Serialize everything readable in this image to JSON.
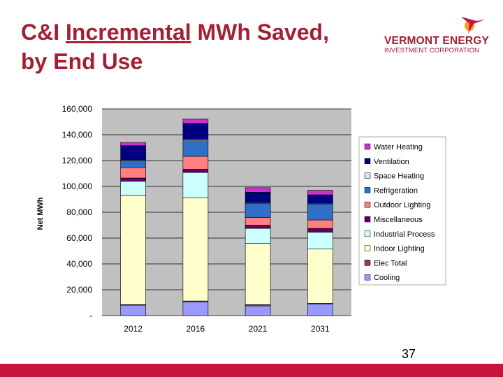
{
  "slide": {
    "title_part1": "C&I ",
    "title_underlined": "Incremental",
    "title_part2": " MWh Saved,",
    "title_line2": "by End Use",
    "page_number": "37",
    "title_color": "#a41f35",
    "footer_color": "#c8143c"
  },
  "logo": {
    "name": "VERMONT ENERGY",
    "subtitle": "INVESTMENT CORPORATION",
    "colors": {
      "text": "#a41f35",
      "sun": "#f2a01c",
      "bird": "#c8143c"
    }
  },
  "chart_data": {
    "type": "bar",
    "stacked": true,
    "title": "",
    "xlabel": "",
    "ylabel": "Net MWh",
    "ylim": [
      0,
      160000
    ],
    "yticks": [
      0,
      20000,
      40000,
      60000,
      80000,
      100000,
      120000,
      140000,
      160000
    ],
    "ytick_labels": [
      "-",
      "20,000",
      "40,000",
      "60,000",
      "80,000",
      "100,000",
      "120,000",
      "140,000",
      "160,000"
    ],
    "grid": true,
    "legend_position": "right",
    "categories": [
      "2012",
      "2016",
      "2021",
      "2031"
    ],
    "series": [
      {
        "name": "Cooling",
        "color": "#9999ff",
        "values": [
          8000,
          10500,
          7500,
          9000
        ]
      },
      {
        "name": "Elec Total",
        "color": "#993366",
        "values": [
          500,
          800,
          1000,
          500
        ]
      },
      {
        "name": "Indoor Lighting",
        "color": "#ffffcc",
        "values": [
          84500,
          80000,
          47500,
          42000
        ]
      },
      {
        "name": "Industrial Process",
        "color": "#ccffff",
        "values": [
          11000,
          19500,
          11500,
          13000
        ]
      },
      {
        "name": "Miscellaneous",
        "color": "#660066",
        "values": [
          2500,
          2500,
          2500,
          3000
        ]
      },
      {
        "name": "Outdoor Lighting",
        "color": "#ff8080",
        "values": [
          8000,
          10000,
          6000,
          6500
        ]
      },
      {
        "name": "Refrigeration",
        "color": "#2f6fc8",
        "values": [
          5500,
          12000,
          11000,
          12500
        ]
      },
      {
        "name": "Space Heating",
        "color": "#cce4ff",
        "values": [
          500,
          1000,
          500,
          500
        ]
      },
      {
        "name": "Ventilation",
        "color": "#000080",
        "values": [
          11000,
          12500,
          8000,
          6500
        ]
      },
      {
        "name": "Water Heating",
        "color": "#cc33cc",
        "values": [
          2500,
          3500,
          3500,
          3500
        ]
      }
    ]
  }
}
